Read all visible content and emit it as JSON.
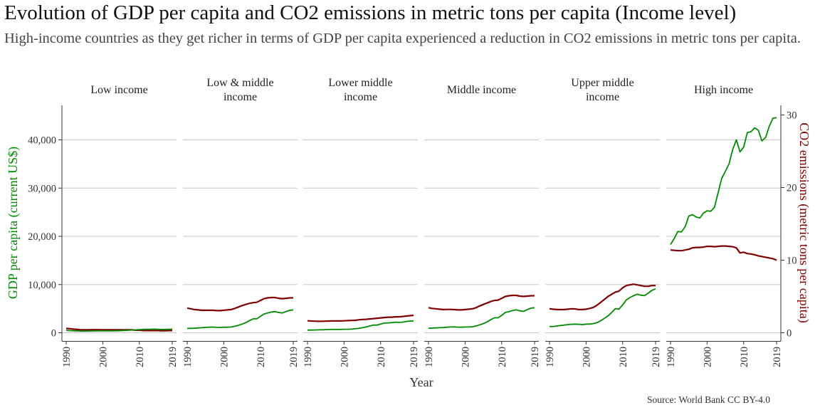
{
  "title": "Evolution of GDP per capita and CO2 emissions in metric tons per capita (Income level)",
  "subtitle": "High-income countries as they get richer in terms of GDP per capita experienced a reduction in CO2 emissions in metric tons per capita.",
  "source": "Source: World Bank CC BY-4.0",
  "colors": {
    "gdp": "#008b00",
    "co2": "#800000",
    "grid": "#c8c8c8",
    "axis": "#333333"
  },
  "chart_data": {
    "type": "line",
    "facets": [
      "Low income",
      "Low & middle income",
      "Lower middle income",
      "Middle income",
      "Upper middle income",
      "High income"
    ],
    "xlabel": "Year",
    "ylabel_left": "GDP per capita (current US$)",
    "ylabel_right": "CO2 emissions (metric tons per capita)",
    "ylim_left": [
      0,
      45000
    ],
    "ylim_right": [
      0,
      30
    ],
    "x_ticks": [
      "1990",
      "2000",
      "2010",
      "2019"
    ],
    "y_ticks_left": [
      "0",
      "10,000",
      "20,000",
      "30,000",
      "40,000"
    ],
    "y_ticks_right": [
      "0",
      "10",
      "20",
      "30"
    ],
    "x": [
      1990,
      1991,
      1992,
      1993,
      1994,
      1995,
      1996,
      1997,
      1998,
      1999,
      2000,
      2001,
      2002,
      2003,
      2004,
      2005,
      2006,
      2007,
      2008,
      2009,
      2010,
      2011,
      2012,
      2013,
      2014,
      2015,
      2016,
      2017,
      2018,
      2019
    ],
    "grid": "horizontal",
    "panels": [
      {
        "facet": "Low income",
        "gdp": [
          500,
          450,
          420,
          380,
          350,
          350,
          360,
          370,
          380,
          380,
          380,
          380,
          390,
          400,
          420,
          450,
          480,
          520,
          580,
          600,
          650,
          700,
          720,
          730,
          750,
          730,
          700,
          700,
          720,
          740
        ],
        "co2": [
          0.6,
          0.55,
          0.5,
          0.45,
          0.4,
          0.4,
          0.4,
          0.42,
          0.42,
          0.42,
          0.4,
          0.4,
          0.4,
          0.4,
          0.4,
          0.4,
          0.4,
          0.4,
          0.4,
          0.35,
          0.35,
          0.3,
          0.3,
          0.3,
          0.3,
          0.3,
          0.28,
          0.28,
          0.3,
          0.3
        ]
      },
      {
        "facet": "Low & middle income",
        "gdp": [
          900,
          920,
          950,
          1000,
          1050,
          1100,
          1150,
          1180,
          1120,
          1100,
          1150,
          1150,
          1200,
          1350,
          1550,
          1800,
          2100,
          2500,
          2900,
          2900,
          3400,
          3900,
          4100,
          4300,
          4400,
          4200,
          4100,
          4400,
          4650,
          4750
        ],
        "co2": [
          3.4,
          3.3,
          3.2,
          3.15,
          3.1,
          3.1,
          3.1,
          3.1,
          3.05,
          3.05,
          3.1,
          3.15,
          3.2,
          3.35,
          3.55,
          3.75,
          3.9,
          4.05,
          4.15,
          4.2,
          4.45,
          4.7,
          4.8,
          4.85,
          4.85,
          4.75,
          4.7,
          4.75,
          4.8,
          4.8
        ]
      },
      {
        "facet": "Lower middle income",
        "gdp": [
          550,
          560,
          580,
          600,
          620,
          650,
          680,
          700,
          680,
          700,
          720,
          730,
          750,
          820,
          920,
          1050,
          1200,
          1400,
          1600,
          1600,
          1800,
          2000,
          2050,
          2100,
          2200,
          2150,
          2200,
          2350,
          2400,
          2450
        ],
        "co2": [
          1.65,
          1.62,
          1.6,
          1.58,
          1.58,
          1.6,
          1.62,
          1.64,
          1.63,
          1.63,
          1.65,
          1.68,
          1.7,
          1.72,
          1.78,
          1.82,
          1.85,
          1.9,
          1.95,
          2.0,
          2.05,
          2.1,
          2.15,
          2.15,
          2.2,
          2.2,
          2.25,
          2.3,
          2.35,
          2.4
        ]
      },
      {
        "facet": "Middle income",
        "gdp": [
          950,
          970,
          1000,
          1050,
          1080,
          1150,
          1200,
          1230,
          1170,
          1150,
          1200,
          1200,
          1250,
          1400,
          1650,
          1900,
          2250,
          2700,
          3100,
          3100,
          3600,
          4200,
          4400,
          4600,
          4750,
          4550,
          4450,
          4800,
          5100,
          5200
        ],
        "co2": [
          3.45,
          3.35,
          3.3,
          3.25,
          3.2,
          3.22,
          3.22,
          3.2,
          3.15,
          3.15,
          3.2,
          3.25,
          3.3,
          3.45,
          3.7,
          3.9,
          4.1,
          4.3,
          4.45,
          4.5,
          4.75,
          5.0,
          5.1,
          5.15,
          5.15,
          5.05,
          5.0,
          5.05,
          5.1,
          5.1
        ]
      },
      {
        "facet": "Upper middle income",
        "gdp": [
          1300,
          1300,
          1400,
          1500,
          1600,
          1700,
          1750,
          1800,
          1750,
          1700,
          1800,
          1800,
          1900,
          2100,
          2500,
          3000,
          3500,
          4200,
          5000,
          4900,
          5800,
          6800,
          7300,
          7700,
          8000,
          7800,
          7700,
          8200,
          8800,
          9100
        ],
        "co2": [
          3.3,
          3.25,
          3.2,
          3.2,
          3.2,
          3.25,
          3.3,
          3.28,
          3.2,
          3.2,
          3.25,
          3.35,
          3.5,
          3.8,
          4.2,
          4.6,
          5.0,
          5.3,
          5.6,
          5.75,
          6.2,
          6.5,
          6.6,
          6.7,
          6.6,
          6.5,
          6.4,
          6.4,
          6.5,
          6.5
        ]
      },
      {
        "facet": "High income",
        "gdp": [
          18300,
          19500,
          21000,
          20900,
          22000,
          24200,
          24500,
          24000,
          23800,
          24800,
          25300,
          25200,
          26000,
          29000,
          32000,
          33500,
          35000,
          38000,
          40000,
          37500,
          38500,
          41500,
          41700,
          42500,
          42000,
          39800,
          40500,
          42800,
          44500,
          44600
        ],
        "co2": [
          11.4,
          11.35,
          11.3,
          11.3,
          11.4,
          11.5,
          11.7,
          11.75,
          11.75,
          11.8,
          11.9,
          11.9,
          11.85,
          11.9,
          11.95,
          11.95,
          11.9,
          11.85,
          11.7,
          11.0,
          11.1,
          10.9,
          10.85,
          10.75,
          10.6,
          10.5,
          10.4,
          10.3,
          10.2,
          10.0
        ]
      }
    ]
  }
}
